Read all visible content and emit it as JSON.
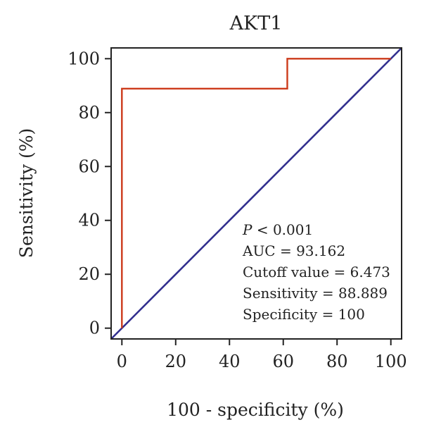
{
  "chart_data": {
    "type": "line",
    "title": "AKT1",
    "xlabel": "100 - specificity (%)",
    "ylabel": "Sensitivity (%)",
    "xlim": [
      -4,
      104
    ],
    "ylim": [
      -4,
      104
    ],
    "xticks": [
      0,
      20,
      40,
      60,
      80,
      100
    ],
    "yticks": [
      0,
      20,
      40,
      60,
      80,
      100
    ],
    "grid": false,
    "series": [
      {
        "role": "roc-curve",
        "color": "#cc3a1a",
        "x": [
          0,
          0,
          61.5,
          61.5,
          100
        ],
        "y": [
          0,
          88.889,
          88.889,
          100,
          100
        ]
      },
      {
        "role": "reference-diagonal",
        "color": "#33308f",
        "x": [
          -4,
          104
        ],
        "y": [
          -4,
          104
        ]
      }
    ],
    "annotations": {
      "p_prefix": "P",
      "p_rest": " < 0.001",
      "auc": "AUC = 93.162",
      "cutoff": "Cutoff value = 6.473",
      "sensitivity": "Sensitivity = 88.889",
      "specificity": "Specificity = 100"
    }
  }
}
